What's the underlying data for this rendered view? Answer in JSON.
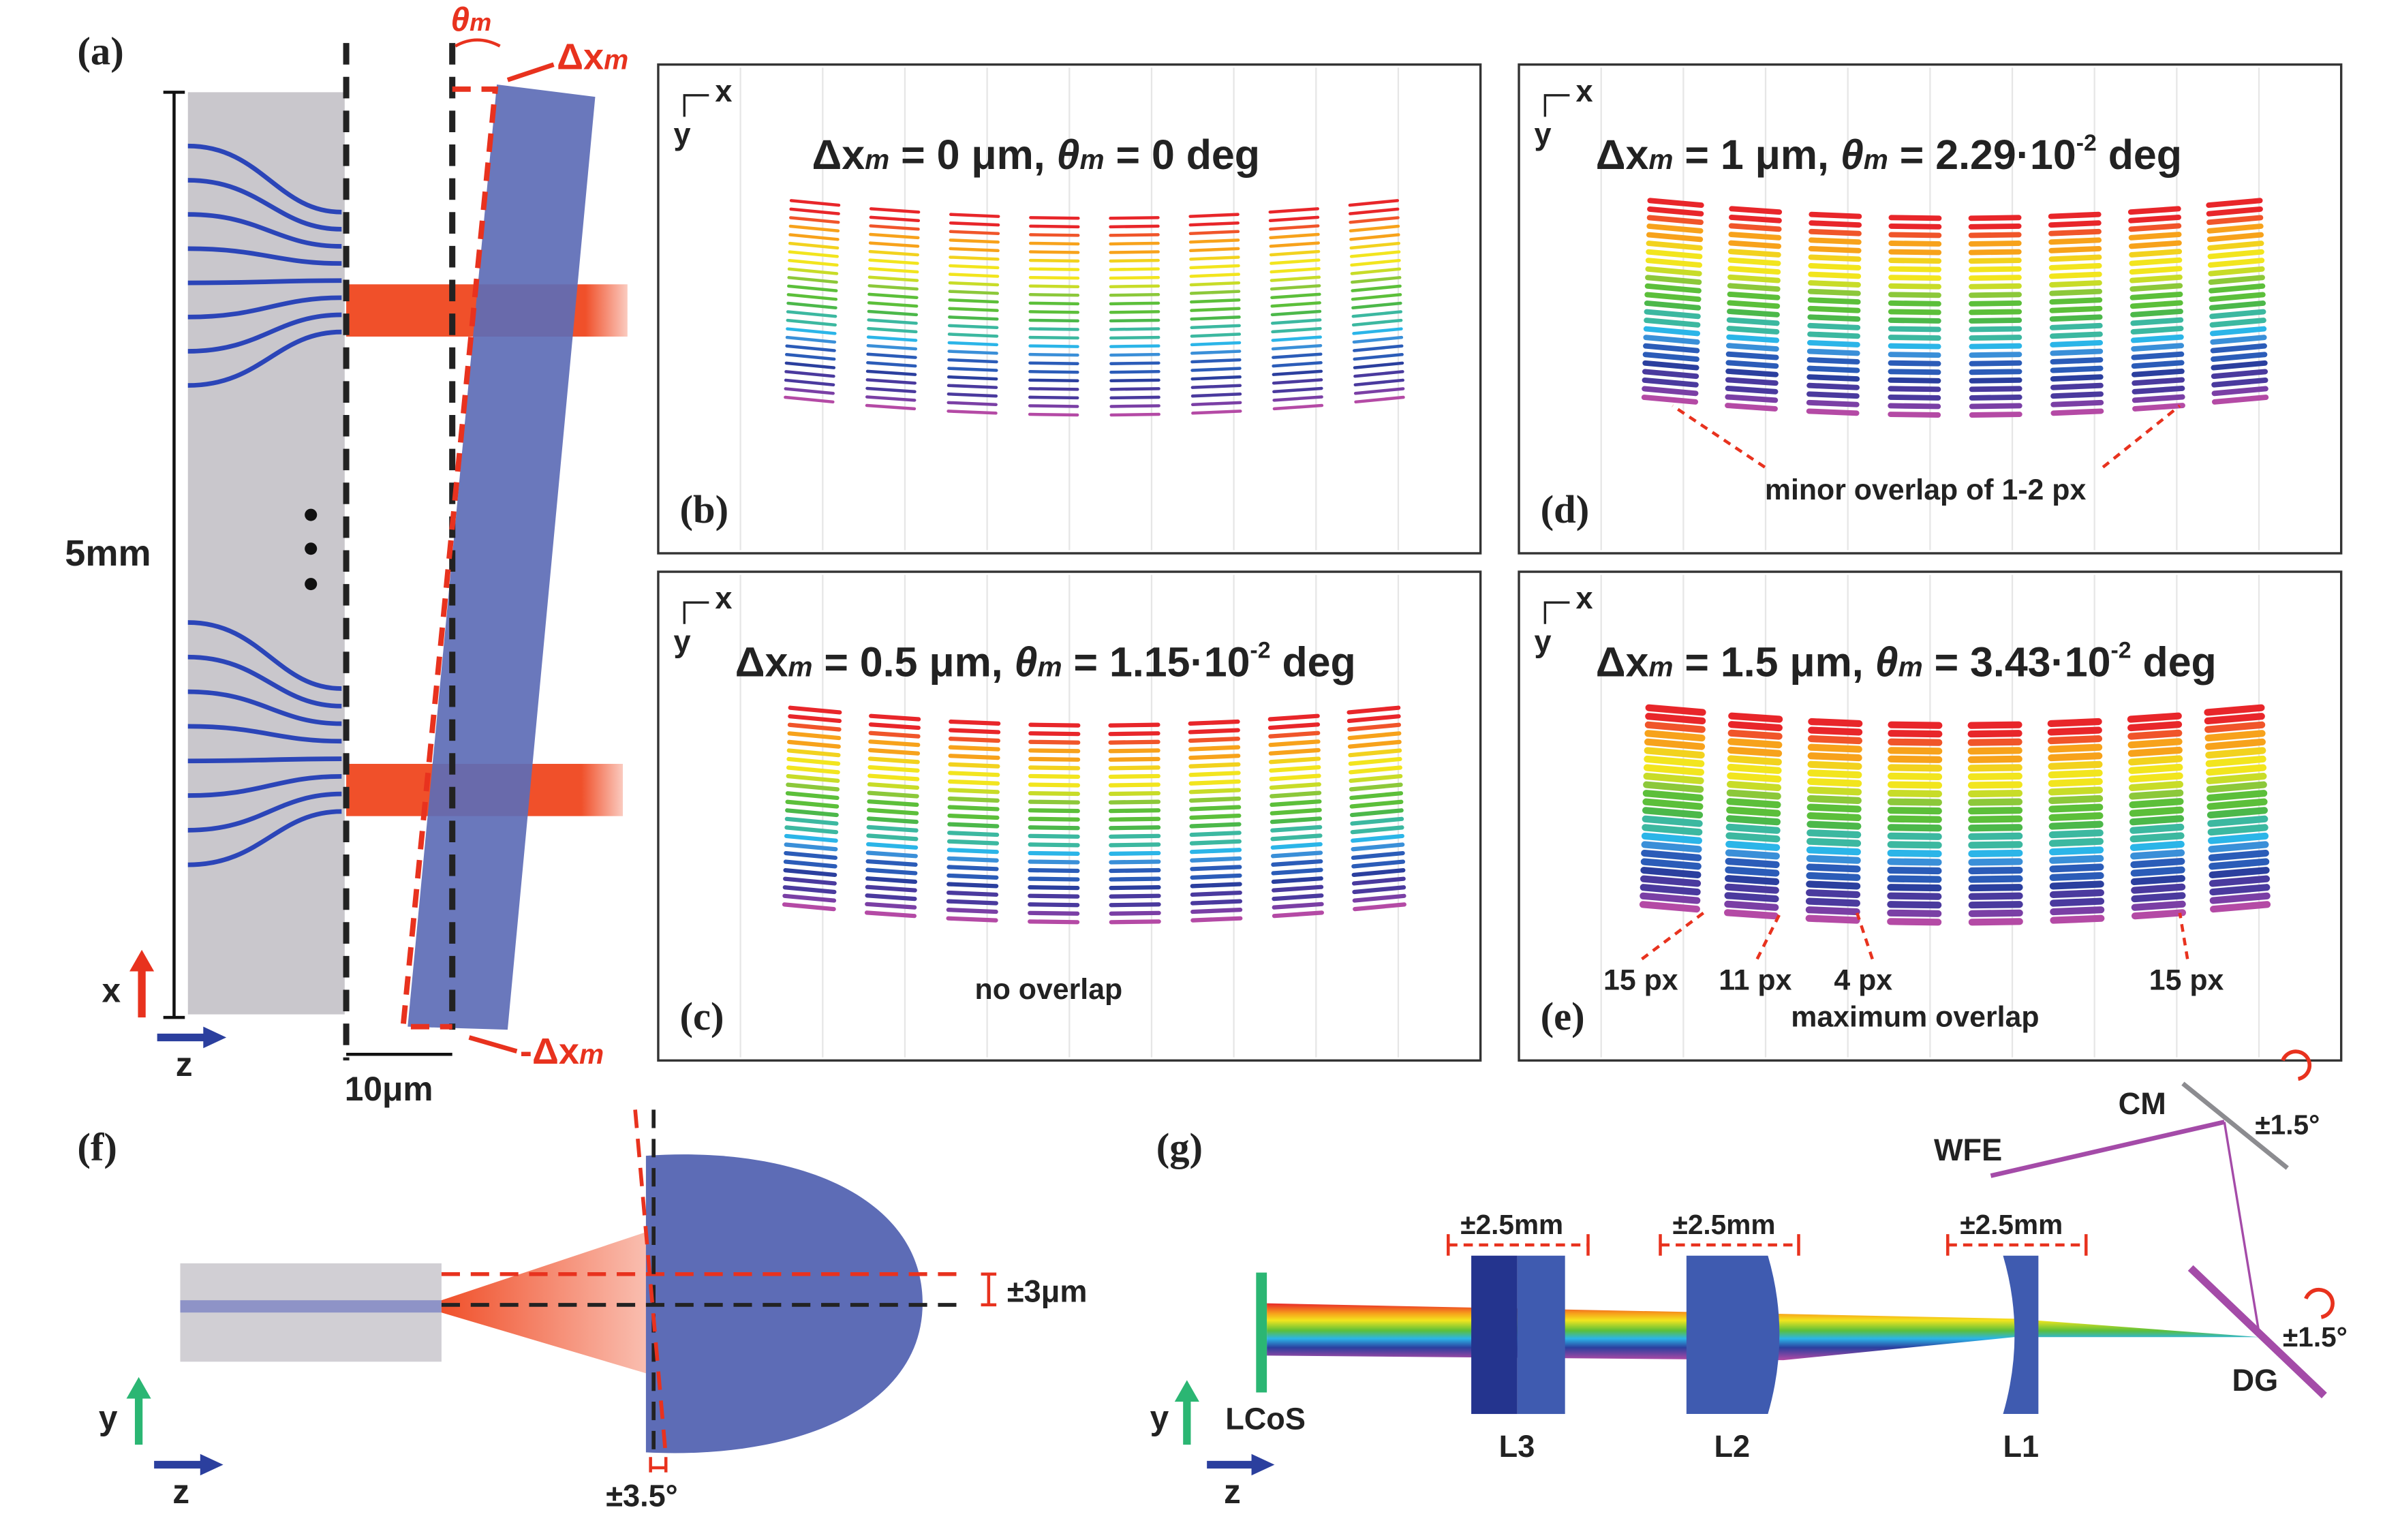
{
  "colors": {
    "waveguide": "#2b45b8",
    "lens": "#5b6bb8",
    "beam": "#f0502a",
    "accent_red": "#e8321e",
    "lcos": "#2bb673",
    "grating": "#a44ba8",
    "mirror": "#8c8c90"
  },
  "panel_a": {
    "label": "(a)",
    "height_label": "5mm",
    "gap_label": "10μm",
    "dx_label": "Δx",
    "dx_sub": "m",
    "neg_dx_label": "-Δx",
    "neg_dx_sub": "m",
    "theta_label": "θ",
    "theta_sub": "m",
    "axis_x": "x",
    "axis_z": "z",
    "ellipsis": "⋮"
  },
  "panels": [
    {
      "id": "b",
      "label": "(b)",
      "dx": "Δx",
      "sub": "m",
      "dx_val": " = 0 μm,  ",
      "theta": "θ",
      "theta_val": " = 0 deg",
      "exp": "",
      "unit": "",
      "axis_x": "x",
      "axis_y": "y",
      "notes": []
    },
    {
      "id": "d",
      "label": "(d)",
      "dx": "Δx",
      "sub": "m",
      "dx_val": " = 1 μm,  ",
      "theta": "θ",
      "theta_val": " = 2.29·10",
      "exp": "-2",
      "unit": " deg",
      "axis_x": "x",
      "axis_y": "y",
      "notes": [
        "minor overlap of 1-2 px"
      ]
    },
    {
      "id": "c",
      "label": "(c)",
      "dx": "Δx",
      "sub": "m",
      "dx_val": " = 0.5 μm,  ",
      "theta": "θ",
      "theta_val": " = 1.15·10",
      "exp": "-2",
      "unit": " deg",
      "axis_x": "x",
      "axis_y": "y",
      "notes": [
        "no overlap"
      ]
    },
    {
      "id": "e",
      "label": "(e)",
      "dx": "Δx",
      "sub": "m",
      "dx_val": " = 1.5 μm,  ",
      "theta": "θ",
      "theta_val": " = 3.43·10",
      "exp": "-2",
      "unit": " deg",
      "axis_x": "x",
      "axis_y": "y",
      "notes": [
        "15 px",
        "11 px",
        "4 px",
        "15 px",
        "maximum overlap"
      ]
    }
  ],
  "panel_f": {
    "label": "(f)",
    "offset_label": "±3μm",
    "tilt_label": "±3.5°",
    "axis_y": "y",
    "axis_z": "z"
  },
  "panel_g": {
    "label": "(g)",
    "lcos": "LCoS",
    "l3": "L3",
    "l2": "L2",
    "l1": "L1",
    "dg": "DG",
    "cm": "CM",
    "wfe": "WFE",
    "tol_l3": "±2.5mm",
    "tol_l2": "±2.5mm",
    "tol_l1": "±2.5mm",
    "rot_cm": "±1.5°",
    "rot_dg": "±1.5°",
    "axis_y": "y",
    "axis_z": "z"
  }
}
